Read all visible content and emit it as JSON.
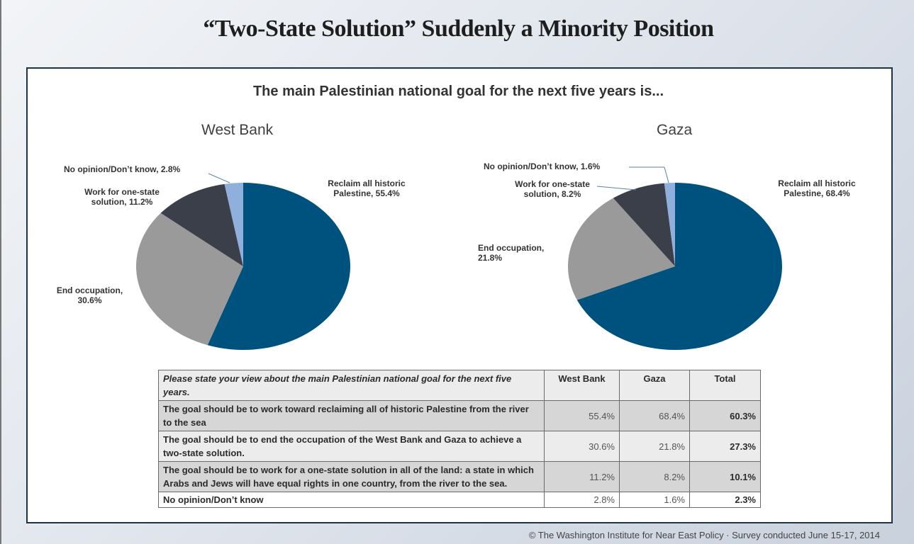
{
  "title": "“Two-State Solution” Suddenly a Minority Position",
  "footer": "© The Washington Institute for Near East Policy · Survey conducted June 15-17, 2014",
  "chart_data": [
    {
      "type": "pie",
      "title": "West Bank",
      "subtitle": "The main Palestinian national goal for the next five years is...",
      "slices": [
        {
          "name": "Reclaim all historic Palestine",
          "value": 55.4,
          "label": "Reclaim all historic Palestine, 55.4%",
          "color": "#00527e"
        },
        {
          "name": "End occupation",
          "value": 30.6,
          "label": "End occupation, 30.6%",
          "color": "#9a9a9a"
        },
        {
          "name": "Work for one-state solution",
          "value": 11.2,
          "label": "Work for one-state solution, 11.2%",
          "color": "#3a3f4a"
        },
        {
          "name": "No opinion/Don’t know",
          "value": 2.8,
          "label": "No opinion/Don’t know, 2.8%",
          "color": "#8fb0dc"
        }
      ]
    },
    {
      "type": "pie",
      "title": "Gaza",
      "slices": [
        {
          "name": "Reclaim all historic Palestine",
          "value": 68.4,
          "label": "Reclaim all historic Palestine, 68.4%",
          "color": "#00527e"
        },
        {
          "name": "End occupation",
          "value": 21.8,
          "label": "End occupation, 21.8%",
          "color": "#9a9a9a"
        },
        {
          "name": "Work for one-state solution",
          "value": 8.2,
          "label": "Work for one-state solution, 8.2%",
          "color": "#3a3f4a"
        },
        {
          "name": "No opinion/Don’t know",
          "value": 1.6,
          "label": "No opinion/Don’t know, 1.6%",
          "color": "#8fb0dc"
        }
      ]
    },
    {
      "type": "table",
      "header": [
        "Please state your view about the main Palestinian national goal for the next five years.",
        "West Bank",
        "Gaza",
        "Total"
      ],
      "rows": [
        [
          "The goal should be to work toward reclaiming all of historic Palestine from the river to the sea",
          "55.4%",
          "68.4%",
          "60.3%"
        ],
        [
          "The goal should be to end the occupation of the West Bank and Gaza to achieve a two-state solution.",
          "30.6%",
          "21.8%",
          "27.3%"
        ],
        [
          "The goal should be to work for a one-state solution in all of the land: a state in which Arabs and Jews will have equal rights in one country, from the river to the sea.",
          "11.2%",
          "8.2%",
          "10.1%"
        ],
        [
          "No opinion/Don’t know",
          "2.8%",
          "1.6%",
          "2.3%"
        ]
      ]
    }
  ]
}
